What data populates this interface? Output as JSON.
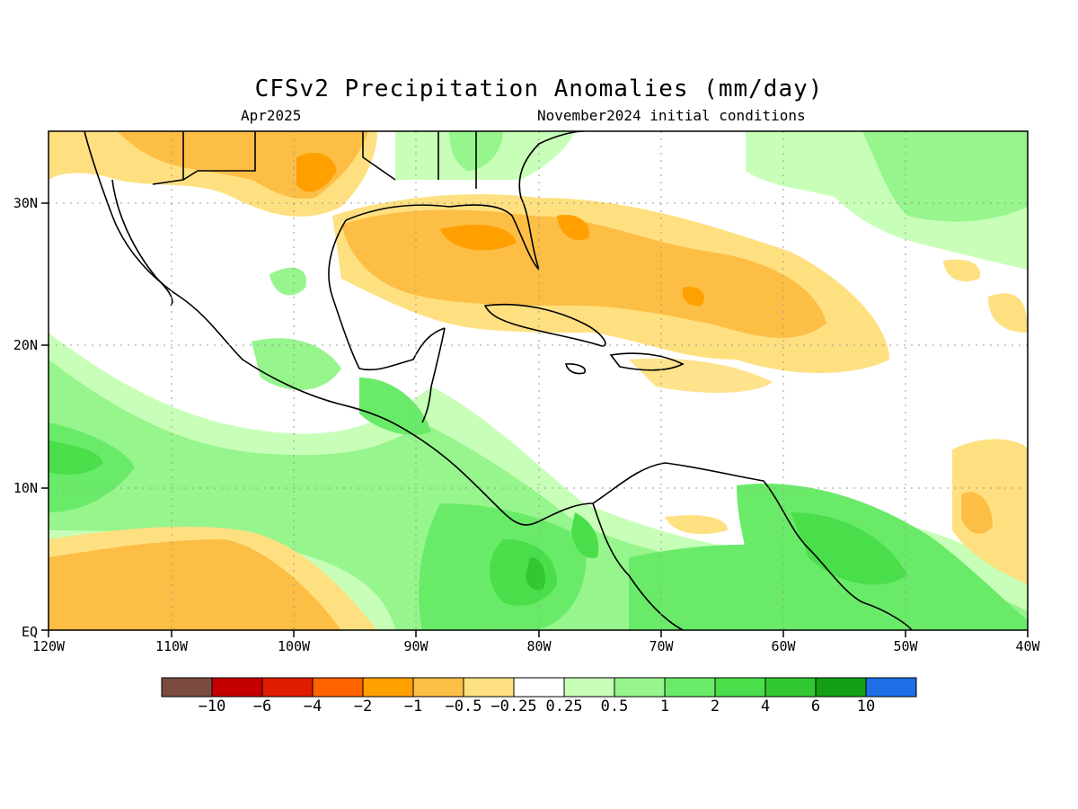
{
  "header": {
    "title": "CFSv2 Precipitation Anomalies (mm/day)",
    "valid_month": "Apr2025",
    "initial_conditions": "November2024 initial conditions"
  },
  "map": {
    "region": "Gulf of Mexico, Central America, Caribbean",
    "lon_ticks": [
      "120W",
      "110W",
      "100W",
      "90W",
      "80W",
      "70W",
      "60W",
      "50W",
      "40W"
    ],
    "lat_ticks": [
      "EQ",
      "10N",
      "20N",
      "30N"
    ],
    "grid": true
  },
  "colorbar": {
    "colors": [
      "#7b4b3e",
      "#c40000",
      "#e01c00",
      "#ff6400",
      "#ffa000",
      "#fdbe46",
      "#ffe080",
      "#ffffff",
      "#c8ffb8",
      "#96f58c",
      "#69eb69",
      "#4ade4a",
      "#32c832",
      "#14a014",
      "#1e6ee6"
    ],
    "labels": [
      "−10",
      "−6",
      "−4",
      "−2",
      "−1",
      "−0.5",
      "−0.25",
      "0.25",
      "0.5",
      "1",
      "2",
      "4",
      "6",
      "10"
    ]
  }
}
